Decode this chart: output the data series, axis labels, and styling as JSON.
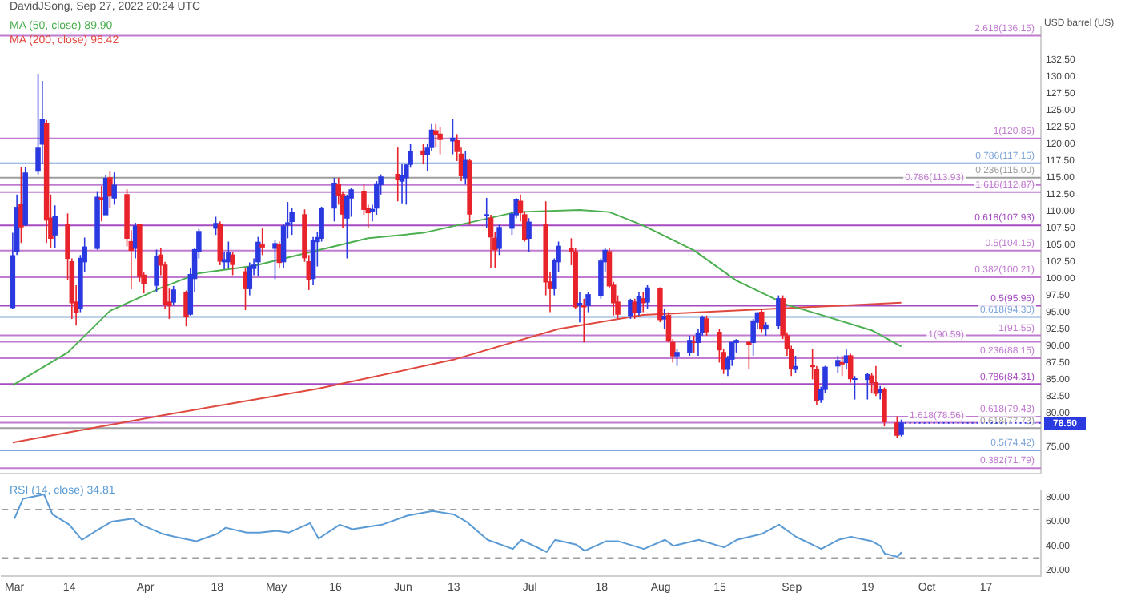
{
  "chart_data": [
    {
      "type": "candlestick",
      "title": "DavidJSong, Sep 27, 2022 20:24 UTC",
      "ylabel": "USD barrel (US)",
      "x": [
        "2022-03-01",
        "2022-03-02",
        "2022-03-03",
        "2022-03-04",
        "2022-03-07",
        "2022-03-08",
        "2022-03-09",
        "2022-03-10",
        "2022-03-11",
        "2022-03-14",
        "2022-03-15",
        "2022-03-16",
        "2022-03-17",
        "2022-03-18",
        "2022-03-21",
        "2022-03-22",
        "2022-03-23",
        "2022-03-24",
        "2022-03-25",
        "2022-03-28",
        "2022-03-29",
        "2022-03-30",
        "2022-03-31",
        "2022-04-01",
        "2022-04-04",
        "2022-04-05",
        "2022-04-06",
        "2022-04-07",
        "2022-04-08",
        "2022-04-11",
        "2022-04-12",
        "2022-04-13",
        "2022-04-14",
        "2022-04-18",
        "2022-04-19",
        "2022-04-20",
        "2022-04-21",
        "2022-04-22",
        "2022-04-25",
        "2022-04-26",
        "2022-04-27",
        "2022-04-28",
        "2022-04-29",
        "2022-05-02",
        "2022-05-03",
        "2022-05-04",
        "2022-05-05",
        "2022-05-06",
        "2022-05-09",
        "2022-05-10",
        "2022-05-11",
        "2022-05-12",
        "2022-05-13",
        "2022-05-16",
        "2022-05-17",
        "2022-05-18",
        "2022-05-19",
        "2022-05-20",
        "2022-05-23",
        "2022-05-24",
        "2022-05-25",
        "2022-05-26",
        "2022-05-27",
        "2022-05-31",
        "2022-06-01",
        "2022-06-02",
        "2022-06-03",
        "2022-06-06",
        "2022-06-07",
        "2022-06-08",
        "2022-06-09",
        "2022-06-10",
        "2022-06-13",
        "2022-06-14",
        "2022-06-15",
        "2022-06-16",
        "2022-06-17",
        "2022-06-21",
        "2022-06-22",
        "2022-06-23",
        "2022-06-24",
        "2022-06-27",
        "2022-06-28",
        "2022-06-29",
        "2022-06-30",
        "2022-07-01",
        "2022-07-05",
        "2022-07-06",
        "2022-07-07",
        "2022-07-08",
        "2022-07-11",
        "2022-07-12",
        "2022-07-13",
        "2022-07-14",
        "2022-07-15",
        "2022-07-18",
        "2022-07-19",
        "2022-07-20",
        "2022-07-21",
        "2022-07-22",
        "2022-07-25",
        "2022-07-26",
        "2022-07-27",
        "2022-07-28",
        "2022-07-29",
        "2022-08-01",
        "2022-08-02",
        "2022-08-03",
        "2022-08-04",
        "2022-08-05",
        "2022-08-08",
        "2022-08-09",
        "2022-08-10",
        "2022-08-11",
        "2022-08-12",
        "2022-08-15",
        "2022-08-16",
        "2022-08-17",
        "2022-08-18",
        "2022-08-19",
        "2022-08-22",
        "2022-08-23",
        "2022-08-24",
        "2022-08-25",
        "2022-08-26",
        "2022-08-29",
        "2022-08-30",
        "2022-08-31",
        "2022-09-01",
        "2022-09-02",
        "2022-09-06",
        "2022-09-07",
        "2022-09-08",
        "2022-09-09",
        "2022-09-12",
        "2022-09-13",
        "2022-09-14",
        "2022-09-15",
        "2022-09-16",
        "2022-09-19",
        "2022-09-20",
        "2022-09-21",
        "2022-09-22",
        "2022-09-23",
        "2022-09-26",
        "2022-09-27"
      ],
      "ohlc": [
        [
          95.7,
          106.8,
          95.5,
          103.4
        ],
        [
          104.0,
          112.5,
          103.5,
          110.6
        ],
        [
          111.0,
          116.6,
          105.3,
          107.7
        ],
        [
          108.0,
          116.6,
          107.8,
          115.7
        ],
        [
          116.0,
          130.5,
          115.5,
          119.4
        ],
        [
          120.0,
          129.4,
          117.0,
          123.7
        ],
        [
          123.0,
          123.6,
          105.3,
          108.7
        ],
        [
          109.0,
          112.5,
          104.5,
          106.0
        ],
        [
          106.5,
          110.9,
          104.5,
          109.3
        ],
        [
          108.0,
          109.7,
          99.8,
          103.0
        ],
        [
          102.5,
          103.0,
          94.0,
          96.4
        ],
        [
          96.5,
          99.0,
          93.0,
          95.0
        ],
        [
          95.5,
          103.5,
          95.0,
          103.0
        ],
        [
          102.5,
          106.1,
          101.0,
          104.7
        ],
        [
          104.5,
          113.0,
          104.3,
          112.1
        ],
        [
          112.0,
          113.8,
          108.5,
          111.8
        ],
        [
          109.5,
          115.4,
          109.5,
          114.9
        ],
        [
          115.0,
          116.0,
          110.5,
          112.3
        ],
        [
          112.0,
          115.8,
          111.0,
          113.9
        ],
        [
          112.5,
          113.3,
          104.8,
          106.0
        ],
        [
          105.5,
          107.2,
          98.4,
          104.2
        ],
        [
          104.5,
          108.3,
          103.0,
          107.8
        ],
        [
          108.0,
          108.1,
          99.5,
          100.3
        ],
        [
          100.5,
          100.9,
          97.8,
          99.3
        ],
        [
          99.0,
          104.3,
          98.0,
          103.3
        ],
        [
          103.5,
          104.5,
          100.5,
          102.0
        ],
        [
          102.0,
          102.5,
          95.5,
          96.2
        ],
        [
          96.5,
          98.5,
          94.0,
          96.0
        ],
        [
          96.5,
          98.9,
          96.0,
          98.3
        ],
        [
          97.9,
          98.2,
          92.9,
          94.3
        ],
        [
          94.7,
          101.5,
          94.5,
          100.6
        ],
        [
          100.0,
          104.6,
          98.0,
          104.3
        ],
        [
          104.0,
          107.4,
          103.0,
          107.0
        ],
        [
          107.5,
          109.2,
          106.5,
          108.2
        ],
        [
          108.0,
          108.5,
          102.0,
          102.6
        ],
        [
          102.5,
          104.0,
          101.4,
          102.8
        ],
        [
          102.5,
          105.5,
          101.5,
          103.8
        ],
        [
          103.5,
          104.0,
          100.5,
          102.1
        ],
        [
          101.0,
          101.5,
          95.3,
          98.5
        ],
        [
          98.5,
          102.4,
          97.5,
          101.7
        ],
        [
          101.5,
          103.0,
          100.5,
          102.0
        ],
        [
          102.5,
          106.2,
          100.3,
          105.4
        ],
        [
          105.0,
          107.5,
          103.5,
          104.7
        ],
        [
          104.5,
          105.8,
          99.9,
          105.2
        ],
        [
          105.0,
          105.5,
          101.5,
          102.4
        ],
        [
          102.5,
          108.2,
          101.5,
          107.8
        ],
        [
          108.0,
          111.4,
          106.0,
          108.3
        ],
        [
          108.5,
          110.5,
          106.5,
          109.8
        ],
        [
          109.5,
          110.3,
          102.5,
          103.1
        ],
        [
          102.5,
          103.5,
          98.3,
          99.8
        ],
        [
          100.0,
          106.2,
          99.0,
          105.7
        ],
        [
          105.5,
          107.0,
          101.8,
          106.1
        ],
        [
          106.0,
          110.7,
          105.5,
          110.5
        ],
        [
          110.5,
          115.0,
          108.5,
          114.2
        ],
        [
          114.0,
          115.0,
          111.0,
          112.4
        ],
        [
          112.5,
          113.0,
          107.5,
          109.6
        ],
        [
          109.0,
          112.5,
          103.0,
          112.2
        ],
        [
          112.0,
          113.5,
          109.2,
          113.2
        ],
        [
          113.0,
          114.0,
          109.5,
          110.3
        ],
        [
          110.5,
          111.0,
          107.5,
          109.8
        ],
        [
          110.0,
          111.0,
          108.5,
          110.3
        ],
        [
          110.5,
          114.5,
          109.5,
          114.1
        ],
        [
          114.0,
          115.5,
          112.5,
          115.1
        ],
        [
          115.5,
          119.5,
          111.5,
          114.7
        ],
        [
          114.5,
          117.0,
          111.2,
          115.3
        ],
        [
          115.0,
          117.0,
          111.0,
          116.9
        ],
        [
          117.0,
          120.0,
          116.5,
          118.9
        ],
        [
          119.0,
          120.0,
          117.0,
          118.5
        ],
        [
          118.5,
          120.0,
          116.0,
          119.4
        ],
        [
          119.5,
          123.0,
          119.0,
          122.1
        ],
        [
          122.0,
          123.0,
          119.5,
          121.5
        ],
        [
          121.5,
          122.5,
          118.5,
          120.7
        ],
        [
          120.5,
          123.7,
          118.5,
          120.9
        ],
        [
          120.5,
          121.5,
          117.5,
          118.9
        ],
        [
          118.5,
          119.5,
          114.5,
          115.3
        ],
        [
          115.0,
          119.0,
          114.0,
          117.6
        ],
        [
          117.5,
          117.8,
          108.0,
          109.6
        ],
        [
          109.4,
          112.0,
          107.5,
          109.5
        ],
        [
          109.0,
          109.5,
          101.5,
          106.2
        ],
        [
          106.0,
          107.0,
          101.5,
          104.3
        ],
        [
          104.5,
          108.0,
          103.5,
          107.6
        ],
        [
          107.5,
          110.0,
          106.5,
          109.6
        ],
        [
          109.5,
          112.0,
          109.0,
          111.8
        ],
        [
          111.5,
          112.5,
          108.5,
          109.8
        ],
        [
          109.5,
          110.0,
          105.5,
          105.8
        ],
        [
          106.0,
          109.0,
          104.0,
          108.4
        ],
        [
          108.0,
          111.5,
          97.5,
          99.5
        ],
        [
          99.5,
          101.0,
          95.0,
          98.5
        ],
        [
          98.5,
          103.0,
          97.5,
          102.7
        ],
        [
          102.5,
          105.5,
          101.0,
          104.8
        ],
        [
          104.5,
          106.0,
          102.0,
          104.1
        ],
        [
          104.0,
          104.5,
          95.5,
          95.8
        ],
        [
          96.0,
          98.0,
          93.5,
          96.3
        ],
        [
          96.0,
          97.0,
          90.5,
          95.8
        ],
        [
          96.0,
          98.0,
          95.0,
          97.6
        ],
        [
          97.5,
          103.0,
          97.0,
          102.6
        ],
        [
          102.5,
          104.5,
          101.0,
          104.2
        ],
        [
          104.0,
          104.5,
          98.5,
          98.9
        ],
        [
          99.0,
          99.5,
          94.5,
          96.4
        ],
        [
          96.5,
          97.5,
          94.0,
          94.7
        ],
        [
          94.5,
          97.0,
          94.0,
          96.7
        ],
        [
          96.5,
          97.0,
          94.0,
          95.0
        ],
        [
          95.0,
          98.0,
          94.5,
          97.3
        ],
        [
          97.0,
          98.0,
          95.0,
          96.4
        ],
        [
          96.5,
          99.0,
          95.5,
          98.6
        ],
        [
          98.5,
          98.7,
          93.5,
          93.9
        ],
        [
          94.0,
          95.5,
          92.5,
          94.4
        ],
        [
          94.5,
          95.0,
          90.5,
          90.7
        ],
        [
          90.5,
          91.0,
          87.5,
          88.5
        ],
        [
          88.5,
          89.5,
          87.0,
          89.0
        ],
        [
          89.0,
          91.5,
          88.5,
          90.8
        ],
        [
          90.5,
          91.5,
          89.0,
          90.5
        ],
        [
          90.5,
          92.5,
          88.5,
          91.9
        ],
        [
          92.0,
          94.5,
          91.5,
          94.3
        ],
        [
          94.0,
          94.5,
          91.5,
          92.1
        ],
        [
          92.0,
          92.5,
          87.5,
          89.4
        ],
        [
          89.0,
          89.5,
          85.8,
          86.5
        ],
        [
          86.5,
          88.5,
          85.5,
          88.1
        ],
        [
          88.0,
          90.5,
          87.0,
          90.5
        ],
        [
          90.5,
          91.0,
          89.0,
          90.8
        ],
        [
          90.5,
          90.8,
          86.5,
          90.2
        ],
        [
          90.5,
          94.0,
          88.5,
          93.7
        ],
        [
          93.5,
          95.0,
          92.5,
          94.9
        ],
        [
          95.0,
          95.5,
          92.0,
          92.5
        ],
        [
          92.5,
          93.5,
          91.5,
          93.1
        ],
        [
          93.0,
          97.5,
          92.5,
          97.0
        ],
        [
          97.0,
          97.5,
          91.0,
          91.6
        ],
        [
          91.5,
          92.0,
          88.5,
          89.6
        ],
        [
          89.5,
          90.0,
          85.5,
          86.6
        ],
        [
          86.5,
          88.5,
          86.0,
          86.9
        ],
        [
          87.0,
          89.5,
          85.0,
          86.9
        ],
        [
          86.5,
          87.0,
          81.2,
          81.9
        ],
        [
          82.0,
          83.9,
          81.5,
          83.5
        ],
        [
          83.5,
          87.0,
          83.0,
          86.8
        ],
        [
          87.0,
          88.5,
          86.0,
          87.8
        ],
        [
          87.5,
          88.5,
          85.5,
          87.3
        ],
        [
          87.5,
          89.5,
          86.5,
          88.5
        ],
        [
          88.5,
          88.8,
          84.5,
          85.1
        ],
        [
          85.0,
          85.5,
          82.0,
          85.1
        ],
        [
          85.0,
          86.0,
          82.0,
          85.7
        ],
        [
          85.5,
          86.0,
          83.0,
          84.5
        ],
        [
          84.5,
          87.0,
          82.5,
          82.9
        ],
        [
          83.0,
          84.0,
          82.0,
          83.5
        ],
        [
          83.5,
          83.8,
          78.0,
          78.7
        ],
        [
          78.5,
          79.5,
          76.3,
          76.7
        ],
        [
          76.8,
          79.0,
          76.5,
          78.5
        ]
      ],
      "colors": [
        "#2a39e0",
        "#2a39e0",
        "#e8232b",
        "#2a39e0",
        "#2a39e0",
        "#2a39e0",
        "#e8232b",
        "#e8232b",
        "#2a39e0",
        "#e8232b",
        "#e8232b",
        "#e8232b",
        "#2a39e0",
        "#2a39e0",
        "#2a39e0",
        "#e8232b",
        "#2a39e0",
        "#e8232b",
        "#2a39e0",
        "#e8232b",
        "#e8232b",
        "#2a39e0",
        "#e8232b",
        "#e8232b",
        "#2a39e0",
        "#e8232b",
        "#e8232b",
        "#e8232b",
        "#2a39e0",
        "#e8232b",
        "#2a39e0",
        "#2a39e0",
        "#2a39e0",
        "#2a39e0",
        "#e8232b",
        "#2a39e0",
        "#2a39e0",
        "#e8232b",
        "#e8232b",
        "#2a39e0",
        "#2a39e0",
        "#2a39e0",
        "#e8232b",
        "#2a39e0",
        "#e8232b",
        "#2a39e0",
        "#2a39e0",
        "#2a39e0",
        "#e8232b",
        "#e8232b",
        "#2a39e0",
        "#2a39e0",
        "#2a39e0",
        "#2a39e0",
        "#e8232b",
        "#e8232b",
        "#2a39e0",
        "#2a39e0",
        "#e8232b",
        "#e8232b",
        "#2a39e0",
        "#2a39e0",
        "#2a39e0",
        "#e8232b",
        "#2a39e0",
        "#2a39e0",
        "#2a39e0",
        "#e8232b",
        "#2a39e0",
        "#2a39e0",
        "#e8232b",
        "#e8232b",
        "#2a39e0",
        "#e8232b",
        "#e8232b",
        "#2a39e0",
        "#e8232b",
        "#2a39e0",
        "#e8232b",
        "#e8232b",
        "#2a39e0",
        "#2a39e0",
        "#2a39e0",
        "#e8232b",
        "#e8232b",
        "#2a39e0",
        "#e8232b",
        "#e8232b",
        "#2a39e0",
        "#2a39e0",
        "#e8232b",
        "#e8232b",
        "#2a39e0",
        "#e8232b",
        "#2a39e0",
        "#2a39e0",
        "#2a39e0",
        "#e8232b",
        "#e8232b",
        "#e8232b",
        "#2a39e0",
        "#e8232b",
        "#2a39e0",
        "#e8232b",
        "#2a39e0",
        "#e8232b",
        "#2a39e0",
        "#e8232b",
        "#e8232b",
        "#2a39e0",
        "#2a39e0",
        "#e8232b",
        "#2a39e0",
        "#2a39e0",
        "#e8232b",
        "#e8232b",
        "#e8232b",
        "#2a39e0",
        "#2a39e0",
        "#2a39e0",
        "#e8232b",
        "#2a39e0",
        "#2a39e0",
        "#e8232b",
        "#2a39e0",
        "#2a39e0",
        "#e8232b",
        "#e8232b",
        "#e8232b",
        "#2a39e0",
        "#e8232b",
        "#e8232b",
        "#2a39e0",
        "#2a39e0",
        "#2a39e0",
        "#e8232b",
        "#2a39e0",
        "#e8232b",
        "#2a39e0",
        "#2a39e0",
        "#e8232b",
        "#e8232b",
        "#2a39e0",
        "#e8232b",
        "#e8232b",
        "#2a39e0"
      ],
      "series": [
        {
          "type": "line",
          "name": "MA (50, close) 89.90",
          "color": "#4caf50",
          "x": [
            "2022-03-01",
            "2022-03-14",
            "2022-03-24",
            "2022-04-05",
            "2022-04-14",
            "2022-04-27",
            "2022-05-12",
            "2022-05-24",
            "2022-06-06",
            "2022-06-16",
            "2022-06-28",
            "2022-07-13",
            "2022-07-20",
            "2022-07-28",
            "2022-08-09",
            "2022-08-19",
            "2022-08-31",
            "2022-09-08",
            "2022-09-20",
            "2022-09-27"
          ],
          "values": [
            84.1,
            89.0,
            95.2,
            98.6,
            100.8,
            101.9,
            104.2,
            106.0,
            106.8,
            108.2,
            109.9,
            110.2,
            109.9,
            107.9,
            104.2,
            99.7,
            96.1,
            94.6,
            92.3,
            89.9
          ]
        },
        {
          "type": "line",
          "name": "MA (200, close) 96.42",
          "color": "#e0493f",
          "x": [
            "2022-03-01",
            "2022-04-05",
            "2022-05-12",
            "2022-06-13",
            "2022-07-08",
            "2022-07-28",
            "2022-08-24",
            "2022-09-27"
          ],
          "values": [
            75.6,
            79.6,
            83.6,
            87.9,
            92.5,
            94.6,
            95.4,
            96.4
          ]
        }
      ],
      "ref_lines": [
        {
          "axis": "y",
          "value": 136.15,
          "label": "2.618(136.15)",
          "color": "#c07bd0"
        },
        {
          "axis": "y",
          "value": 120.85,
          "label": "1(120.85)",
          "color": "#c07bd0"
        },
        {
          "axis": "y",
          "value": 117.15,
          "label": "0.786(117.15)",
          "color": "#7fa6d8"
        },
        {
          "axis": "y",
          "value": 115.0,
          "label": "0.236(115.00)",
          "color": "#9e9e9e"
        },
        {
          "axis": "y",
          "value": 113.93,
          "label": "0.786(113.93)",
          "color": "#c07bd0"
        },
        {
          "axis": "y",
          "value": 112.87,
          "label": "1.618(112.87)",
          "color": "#c07bd0"
        },
        {
          "axis": "y",
          "value": 107.93,
          "label": "0.618(107.93)",
          "color": "#a64bbf"
        },
        {
          "axis": "y",
          "value": 104.15,
          "label": "0.5(104.15)",
          "color": "#c07bd0"
        },
        {
          "axis": "y",
          "value": 100.21,
          "label": "0.382(100.21)",
          "color": "#c07bd0"
        },
        {
          "axis": "y",
          "value": 95.96,
          "label": "0.5(95.96)",
          "color": "#a64bbf"
        },
        {
          "axis": "y",
          "value": 94.3,
          "label": "0.618(94.30)",
          "color": "#7fa6d8"
        },
        {
          "axis": "y",
          "value": 91.55,
          "label": "1(91.55)",
          "color": "#c07bd0"
        },
        {
          "axis": "y",
          "value": 90.59,
          "label": "1(90.59)",
          "color": "#c07bd0"
        },
        {
          "axis": "y",
          "value": 88.15,
          "label": "0.236(88.15)",
          "color": "#c07bd0"
        },
        {
          "axis": "y",
          "value": 84.31,
          "label": "0.786(84.31)",
          "color": "#a64bbf"
        },
        {
          "axis": "y",
          "value": 79.43,
          "label": "0.618(79.43)",
          "color": "#c07bd0"
        },
        {
          "axis": "y",
          "value": 78.56,
          "label": "1.618(78.56)",
          "color": "#c07bd0"
        },
        {
          "axis": "y",
          "value": 77.73,
          "label": "0.618(77.73)",
          "color": "#9e9e9e"
        },
        {
          "axis": "y",
          "value": 74.42,
          "label": "0.5(74.42)",
          "color": "#7fa6d8"
        },
        {
          "axis": "y",
          "value": 71.79,
          "label": "0.382(71.79)",
          "color": "#c07bd0"
        }
      ],
      "annotations": [
        {
          "text": "78.50",
          "x": "2022-09-27",
          "y": 78.5
        }
      ],
      "xlim": [
        "2022-02-26",
        "2022-10-30"
      ],
      "ylim": [
        71,
        137.5
      ],
      "yticks": [
        {
          "value": 75,
          "label": "75.00"
        },
        {
          "value": 80,
          "label": "80.00"
        },
        {
          "value": 82.5,
          "label": "82.50"
        },
        {
          "value": 85,
          "label": "85.00"
        },
        {
          "value": 87.5,
          "label": "87.50"
        },
        {
          "value": 90,
          "label": "90.00"
        },
        {
          "value": 92.5,
          "label": "92.50"
        },
        {
          "value": 95,
          "label": "95.00"
        },
        {
          "value": 97.5,
          "label": "97.50"
        },
        {
          "value": 100,
          "label": "100.00"
        },
        {
          "value": 102.5,
          "label": "102.50"
        },
        {
          "value": 105,
          "label": "105.00"
        },
        {
          "value": 107.5,
          "label": "107.50"
        },
        {
          "value": 110,
          "label": "110.00"
        },
        {
          "value": 112.5,
          "label": "112.50"
        },
        {
          "value": 115,
          "label": "115.00"
        },
        {
          "value": 117.5,
          "label": "117.50"
        },
        {
          "value": 120,
          "label": "120.00"
        },
        {
          "value": 122.5,
          "label": "122.50"
        },
        {
          "value": 125,
          "label": "125.00"
        },
        {
          "value": 127.5,
          "label": "127.50"
        },
        {
          "value": 130,
          "label": "130.00"
        },
        {
          "value": 132.5,
          "label": "132.50"
        }
      ],
      "tick_labels": "y",
      "legend": "top left",
      "grid": false
    },
    {
      "type": "line",
      "legend": "top left",
      "grid": false,
      "series": [
        {
          "name": "RSI (14, close) 34.81",
          "color": "#5b9bd5",
          "x": [
            "2022-03-01",
            "2022-03-03",
            "2022-03-08",
            "2022-03-10",
            "2022-03-14",
            "2022-03-17",
            "2022-03-21",
            "2022-03-24",
            "2022-03-29",
            "2022-03-31",
            "2022-04-05",
            "2022-04-08",
            "2022-04-13",
            "2022-04-18",
            "2022-04-20",
            "2022-04-25",
            "2022-04-28",
            "2022-05-02",
            "2022-05-05",
            "2022-05-10",
            "2022-05-12",
            "2022-05-17",
            "2022-05-20",
            "2022-05-27",
            "2022-06-02",
            "2022-06-08",
            "2022-06-13",
            "2022-06-16",
            "2022-06-21",
            "2022-06-27",
            "2022-06-29",
            "2022-07-05",
            "2022-07-07",
            "2022-07-12",
            "2022-07-14",
            "2022-07-19",
            "2022-07-22",
            "2022-07-28",
            "2022-08-02",
            "2022-08-04",
            "2022-08-10",
            "2022-08-16",
            "2022-08-19",
            "2022-08-25",
            "2022-08-29",
            "2022-09-02",
            "2022-09-08",
            "2022-09-12",
            "2022-09-15",
            "2022-09-20",
            "2022-09-22",
            "2022-09-23",
            "2022-09-26",
            "2022-09-27"
          ],
          "values": [
            62.5,
            78.8,
            82.5,
            66,
            57.5,
            45,
            53.8,
            60,
            62.5,
            57.5,
            50,
            47.5,
            43.8,
            50,
            55,
            51,
            51,
            52.5,
            51,
            58.8,
            46,
            57.5,
            53.8,
            57.5,
            65,
            68.8,
            66,
            60,
            45,
            37.5,
            45,
            35,
            45,
            41,
            36,
            43.8,
            43.8,
            37.5,
            45,
            40,
            45,
            38.8,
            45,
            50,
            57.5,
            47.5,
            37.5,
            45,
            47.5,
            43.8,
            40,
            33.8,
            31,
            34.81
          ]
        }
      ],
      "ref_lines": [
        {
          "axis": "y",
          "value": 70,
          "color": "#9e9e9e",
          "line_style": "dashed"
        },
        {
          "axis": "y",
          "value": 30,
          "color": "#9e9e9e",
          "line_style": "dashed"
        }
      ],
      "xlim": [
        "2022-02-26",
        "2022-10-30"
      ],
      "ylim": [
        15,
        85
      ],
      "xticks": [
        {
          "value": "2022-03-01",
          "label": "Mar"
        },
        {
          "value": "2022-03-14",
          "label": "14"
        },
        {
          "value": "2022-04-01",
          "label": "Apr"
        },
        {
          "value": "2022-04-18",
          "label": "18"
        },
        {
          "value": "2022-05-02",
          "label": "May"
        },
        {
          "value": "2022-05-16",
          "label": "16"
        },
        {
          "value": "2022-06-01",
          "label": "Jun"
        },
        {
          "value": "2022-06-13",
          "label": "13"
        },
        {
          "value": "2022-07-01",
          "label": "Jul"
        },
        {
          "value": "2022-07-18",
          "label": "18"
        },
        {
          "value": "2022-08-01",
          "label": "Aug"
        },
        {
          "value": "2022-08-15",
          "label": "15"
        },
        {
          "value": "2022-09-01",
          "label": "Sep"
        },
        {
          "value": "2022-09-19",
          "label": "19"
        },
        {
          "value": "2022-10-03",
          "label": "Oct"
        },
        {
          "value": "2022-10-17",
          "label": "17"
        }
      ],
      "yticks": [
        {
          "value": 20,
          "label": "20.00"
        },
        {
          "value": 40,
          "label": "40.00"
        },
        {
          "value": 60,
          "label": "60.00"
        },
        {
          "value": 80,
          "label": "80.00"
        }
      ]
    }
  ]
}
